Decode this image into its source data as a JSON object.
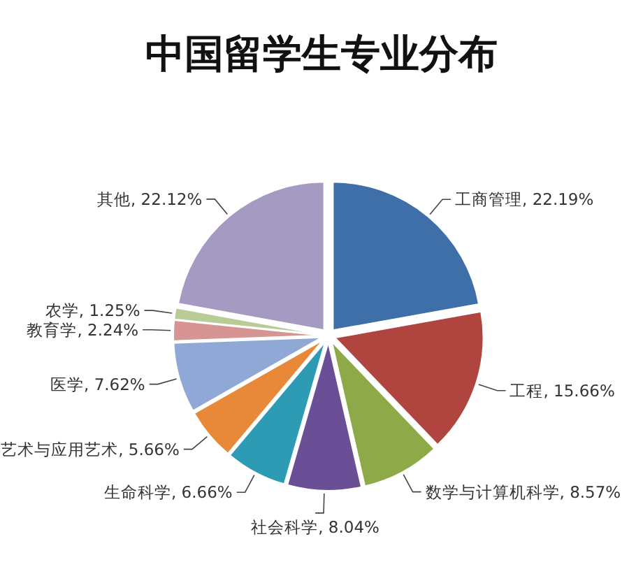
{
  "chart_data": {
    "type": "pie",
    "title": "中国留学生专业分布",
    "categories": [
      "工商管理",
      "工程",
      "数学与计算机科学",
      "社会科学",
      "生命科学",
      "艺术与应用艺术",
      "医学",
      "教育学",
      "农学",
      "其他"
    ],
    "values": [
      22.19,
      15.66,
      8.57,
      8.04,
      6.66,
      5.66,
      7.62,
      2.24,
      1.25,
      22.12
    ],
    "value_labels": [
      "22.19%",
      "15.66%",
      "8.57%",
      "8.04%",
      "6.66%",
      "5.66%",
      "7.62%",
      "2.24%",
      "1.25%",
      "22.12%"
    ],
    "colors": [
      "#3f6fa8",
      "#b04540",
      "#8eaa48",
      "#6b4f96",
      "#2e9bb5",
      "#e8893a",
      "#8fa8d6",
      "#d69592",
      "#b9cc95",
      "#a49ac2"
    ]
  }
}
